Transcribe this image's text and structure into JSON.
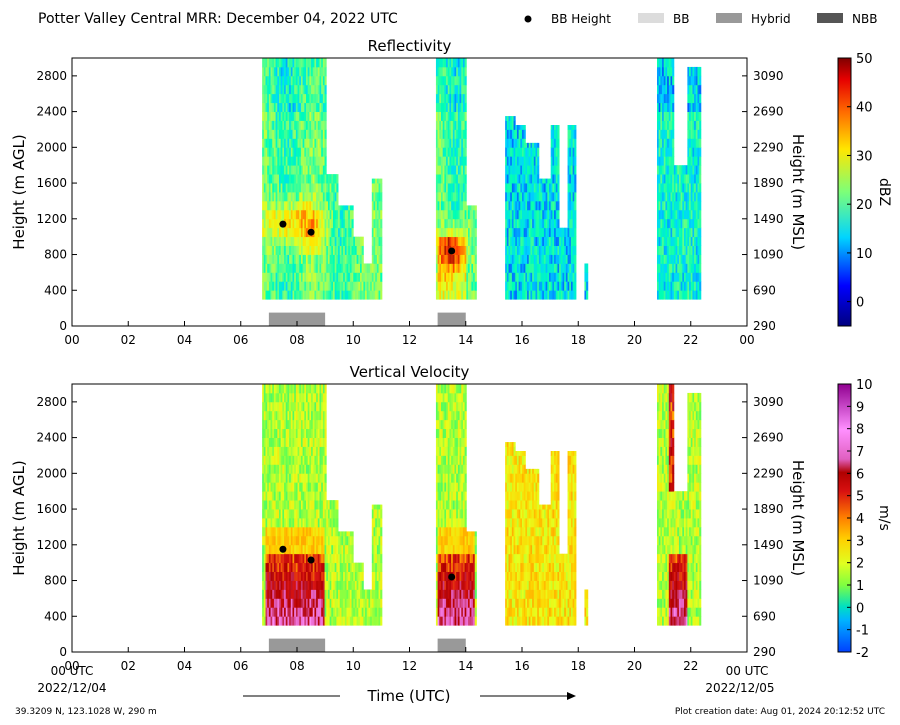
{
  "header": {
    "title": "Potter Valley Central MRR:  December 04, 2022 UTC",
    "legend": [
      {
        "label": "BB Height",
        "kind": "dot",
        "color": "#000000"
      },
      {
        "label": "BB",
        "kind": "box",
        "color": "#dcdcdc"
      },
      {
        "label": "Hybrid",
        "kind": "box",
        "color": "#999999"
      },
      {
        "label": "NBB",
        "kind": "box",
        "color": "#555555"
      }
    ]
  },
  "footer": {
    "location": "39.3209 N, 123.1028 W, 290 m",
    "creation": "Plot creation date: Aug 01, 2024 20:12:52 UTC",
    "xlabel": "Time (UTC)",
    "start_tick": "00 UTC",
    "start_date": "2022/12/04",
    "end_tick": "00 UTC",
    "end_date": "2022/12/05"
  },
  "chart_data": [
    {
      "type": "heatmap",
      "title": "Reflectivity",
      "ylabel": "Height (m AGL)",
      "ylabel_right": "Height (m MSL)",
      "xlim": [
        0,
        24
      ],
      "ylim": [
        0,
        3000
      ],
      "x_ticks": [
        "00",
        "02",
        "04",
        "06",
        "08",
        "10",
        "12",
        "14",
        "16",
        "18",
        "20",
        "22",
        "00"
      ],
      "y_ticks": [
        0,
        400,
        800,
        1200,
        1600,
        2000,
        2400,
        2800
      ],
      "y_ticks_right": [
        290,
        690,
        1090,
        1490,
        1890,
        2290,
        2690,
        3090
      ],
      "colorbar": {
        "label": "dBZ",
        "min": -5,
        "max": 50,
        "ticks": [
          0,
          10,
          20,
          30,
          40,
          50
        ]
      },
      "bb_height_points": [
        {
          "x": 7.5,
          "y": 1140
        },
        {
          "x": 8.5,
          "y": 1050
        },
        {
          "x": 13.5,
          "y": 840
        }
      ],
      "bb_type_bars": [
        {
          "start": 7.0,
          "end": 9.0,
          "type": "Hybrid"
        },
        {
          "start": 13.0,
          "end": 14.0,
          "type": "Hybrid"
        }
      ]
    },
    {
      "type": "heatmap",
      "title": "Vertical Velocity",
      "ylabel": "Height (m AGL)",
      "ylabel_right": "Height (m MSL)",
      "xlim": [
        0,
        24
      ],
      "ylim": [
        0,
        3000
      ],
      "x_ticks": [
        "00",
        "02",
        "04",
        "06",
        "08",
        "10",
        "12",
        "14",
        "16",
        "18",
        "20",
        "22"
      ],
      "y_ticks": [
        0,
        400,
        800,
        1200,
        1600,
        2000,
        2400,
        2800
      ],
      "y_ticks_right": [
        290,
        690,
        1090,
        1490,
        1890,
        2290,
        2690,
        3090
      ],
      "colorbar": {
        "label": "m/s",
        "min": -2,
        "max": 10,
        "ticks": [
          -2,
          -1,
          0,
          1,
          2,
          3,
          4,
          5,
          6,
          7,
          8,
          9,
          10
        ]
      },
      "bb_height_points": [
        {
          "x": 7.5,
          "y": 1150
        },
        {
          "x": 8.5,
          "y": 1030
        },
        {
          "x": 13.5,
          "y": 840
        }
      ],
      "bb_type_bars": [
        {
          "start": 7.0,
          "end": 9.0,
          "type": "Hybrid"
        },
        {
          "start": 13.0,
          "end": 14.0,
          "type": "Hybrid"
        }
      ]
    }
  ]
}
